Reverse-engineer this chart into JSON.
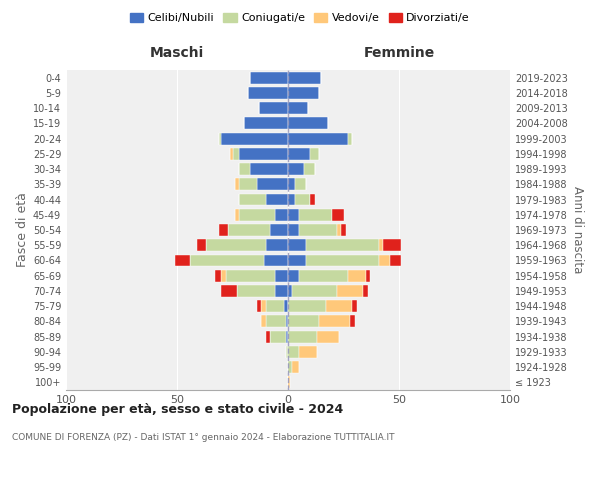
{
  "age_groups": [
    "100+",
    "95-99",
    "90-94",
    "85-89",
    "80-84",
    "75-79",
    "70-74",
    "65-69",
    "60-64",
    "55-59",
    "50-54",
    "45-49",
    "40-44",
    "35-39",
    "30-34",
    "25-29",
    "20-24",
    "15-19",
    "10-14",
    "5-9",
    "0-4"
  ],
  "birth_years": [
    "≤ 1923",
    "1924-1928",
    "1929-1933",
    "1934-1938",
    "1939-1943",
    "1944-1948",
    "1949-1953",
    "1954-1958",
    "1959-1963",
    "1964-1968",
    "1969-1973",
    "1974-1978",
    "1979-1983",
    "1984-1988",
    "1989-1993",
    "1994-1998",
    "1999-2003",
    "2004-2008",
    "2009-2013",
    "2014-2018",
    "2019-2023"
  ],
  "maschi": {
    "celibi": [
      0,
      0,
      0,
      1,
      1,
      2,
      6,
      6,
      11,
      10,
      8,
      6,
      10,
      14,
      17,
      22,
      30,
      20,
      13,
      18,
      17
    ],
    "coniugati": [
      0,
      0,
      1,
      7,
      9,
      8,
      17,
      22,
      33,
      27,
      19,
      16,
      12,
      8,
      5,
      3,
      1,
      0,
      0,
      0,
      0
    ],
    "vedovi": [
      0,
      0,
      0,
      0,
      2,
      2,
      0,
      2,
      0,
      0,
      0,
      2,
      0,
      2,
      0,
      1,
      0,
      0,
      0,
      0,
      0
    ],
    "divorziati": [
      0,
      0,
      0,
      2,
      0,
      2,
      7,
      3,
      7,
      4,
      4,
      0,
      0,
      0,
      0,
      0,
      0,
      0,
      0,
      0,
      0
    ]
  },
  "femmine": {
    "nubili": [
      0,
      0,
      0,
      0,
      0,
      0,
      2,
      5,
      8,
      8,
      5,
      5,
      3,
      3,
      7,
      10,
      27,
      18,
      9,
      14,
      15
    ],
    "coniugate": [
      0,
      2,
      5,
      13,
      14,
      17,
      20,
      22,
      33,
      33,
      17,
      15,
      7,
      5,
      5,
      4,
      2,
      0,
      0,
      0,
      0
    ],
    "vedove": [
      1,
      3,
      8,
      10,
      14,
      12,
      12,
      8,
      5,
      2,
      2,
      0,
      0,
      0,
      0,
      0,
      0,
      0,
      0,
      0,
      0
    ],
    "divorziate": [
      0,
      0,
      0,
      0,
      2,
      2,
      2,
      2,
      5,
      8,
      2,
      5,
      2,
      0,
      0,
      0,
      0,
      0,
      0,
      0,
      0
    ]
  },
  "colors": {
    "celibi_nubili": "#4472c4",
    "coniugati_e": "#c5d9a0",
    "vedovi_e": "#ffc87a",
    "divorziati_e": "#e0221c"
  },
  "xlim": 100,
  "title": "Popolazione per età, sesso e stato civile - 2024",
  "subtitle": "COMUNE DI FORENZA (PZ) - Dati ISTAT 1° gennaio 2024 - Elaborazione TUTTITALIA.IT",
  "xlabel_left": "Maschi",
  "xlabel_right": "Femmine",
  "ylabel_left": "Fasce di età",
  "ylabel_right": "Anni di nascita",
  "legend_labels": [
    "Celibi/Nubili",
    "Coniugati/e",
    "Vedovi/e",
    "Divorziati/e"
  ],
  "background_color": "#ffffff",
  "plot_bg": "#f0f0f0",
  "grid_color": "#cccccc"
}
